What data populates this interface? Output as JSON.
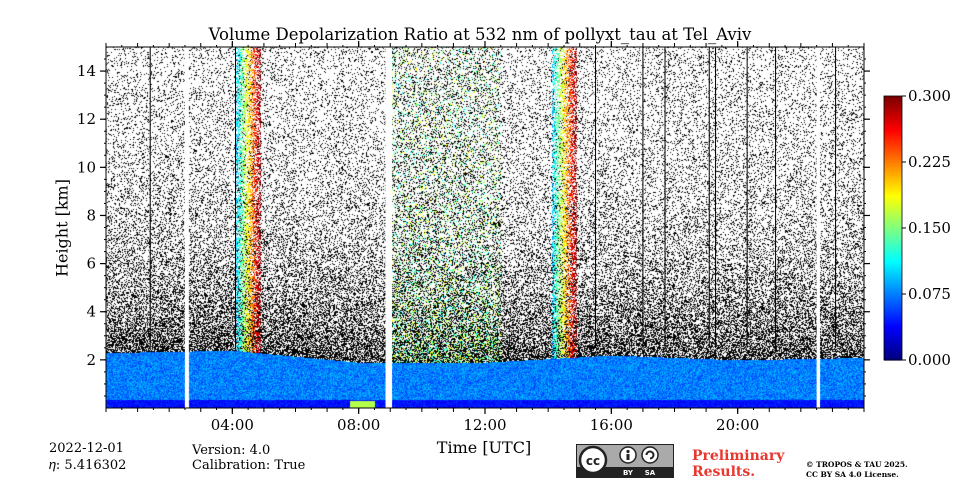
{
  "chart_data": {
    "type": "heatmap",
    "title": "Volume Depolarization Ratio at 532 nm of pollyxt_tau at Tel_Aviv",
    "xlabel": "Time [UTC]",
    "ylabel": "Height [km]",
    "xlim": [
      "00:00",
      "24:00"
    ],
    "ylim": [
      0,
      15
    ],
    "x_tick_labels": [
      "04:00",
      "08:00",
      "12:00",
      "16:00",
      "20:00"
    ],
    "x_ticks_hours": [
      4,
      8,
      12,
      16,
      20
    ],
    "y_ticks": [
      2,
      4,
      6,
      8,
      10,
      12,
      14
    ],
    "y_tick_labels": [
      "2",
      "4",
      "6",
      "8",
      "10",
      "12",
      "14"
    ],
    "colorbar": {
      "min": 0.0,
      "max": 0.3,
      "ticks": [
        0.0,
        0.075,
        0.15,
        0.225,
        0.3
      ],
      "tick_labels": [
        "0.000",
        "0.075",
        "0.150",
        "0.225",
        "0.300"
      ],
      "colormap": "jet"
    },
    "data_gaps_hours": [
      [
        2.5,
        2.6
      ],
      [
        8.85,
        9.05
      ],
      [
        22.5,
        22.6
      ]
    ],
    "high_depol_periods_hours": [
      [
        4.1,
        4.9
      ],
      [
        14.1,
        14.9
      ]
    ],
    "boundary_layer_top_km": [
      {
        "hour": 0,
        "km": 2.3
      },
      {
        "hour": 4,
        "km": 2.4
      },
      {
        "hour": 8,
        "km": 1.9
      },
      {
        "hour": 12,
        "km": 1.9
      },
      {
        "hour": 16,
        "km": 2.2
      },
      {
        "hour": 20,
        "km": 2.0
      },
      {
        "hour": 24,
        "km": 2.1
      }
    ]
  },
  "info": {
    "date": "2022-12-01",
    "eta": "𝜂: 5.416302",
    "version": "Version: 4.0",
    "calibration": "Calibration: True",
    "preliminary": [
      "Preliminary",
      "Results."
    ],
    "copyright": [
      "© TROPOS & TAU 2025.",
      "CC BY SA 4.0 License."
    ]
  },
  "license_badge": {
    "main": "cc",
    "by": "BY",
    "sa": "SA",
    "colors": {
      "badge": "#aaaaaa",
      "dark": "#222222"
    }
  }
}
